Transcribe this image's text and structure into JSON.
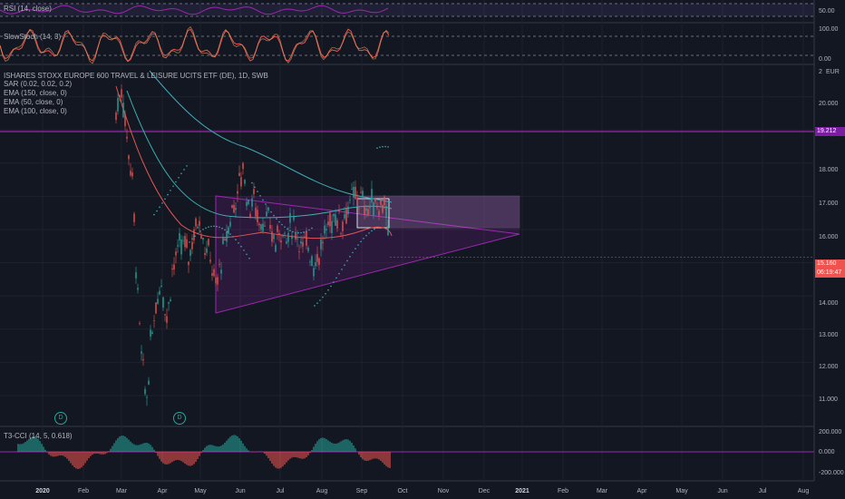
{
  "panels": {
    "rsi": {
      "label": "RSI (14, close)",
      "ticks": [
        "50.00"
      ]
    },
    "stoch": {
      "label": "SlowStoch (14, 3)",
      "ticks": [
        "100.00",
        "0.00"
      ]
    },
    "main": {
      "title": "ISHARES STOXX EUROPE 600 TRAVEL & LEISURE UCITS ETF (DE), 1D, SWB",
      "indicators": [
        "SAR (0.02, 0.02, 0.2)",
        "EMA (150, close, 0)",
        "EMA (50, close, 0)",
        "EMA (100, close, 0)"
      ],
      "ticks": [
        "20.000",
        "18.000",
        "17.000",
        "16.000",
        "14.000",
        "13.000",
        "12.000",
        "11.000"
      ],
      "currency": "EUR",
      "currency_multiplier": "2",
      "hline_label": "19.212",
      "price_label": "15.160",
      "countdown_label": "06:19:47",
      "dividend_markers": [
        "D",
        "D"
      ]
    },
    "cci": {
      "label": "T3-CCI (14, 5, 0.618)",
      "ticks": [
        "200.000",
        "0.000",
        "-200.000"
      ]
    }
  },
  "x_axis": {
    "labels": [
      "2020",
      "Feb",
      "Mar",
      "Apr",
      "May",
      "Jun",
      "Jul",
      "Aug",
      "Sep",
      "Oct",
      "Nov",
      "Dec",
      "2021",
      "Feb",
      "Mar",
      "Apr",
      "May",
      "Jun",
      "Jul",
      "Aug"
    ]
  },
  "colors": {
    "background": "#131722",
    "up": "#26a69a",
    "down": "#ef5350",
    "pattern": "#9c27b0",
    "hline": "#9c27b0",
    "ema150": "#3fa9b5",
    "ema50": "#e05555"
  }
}
